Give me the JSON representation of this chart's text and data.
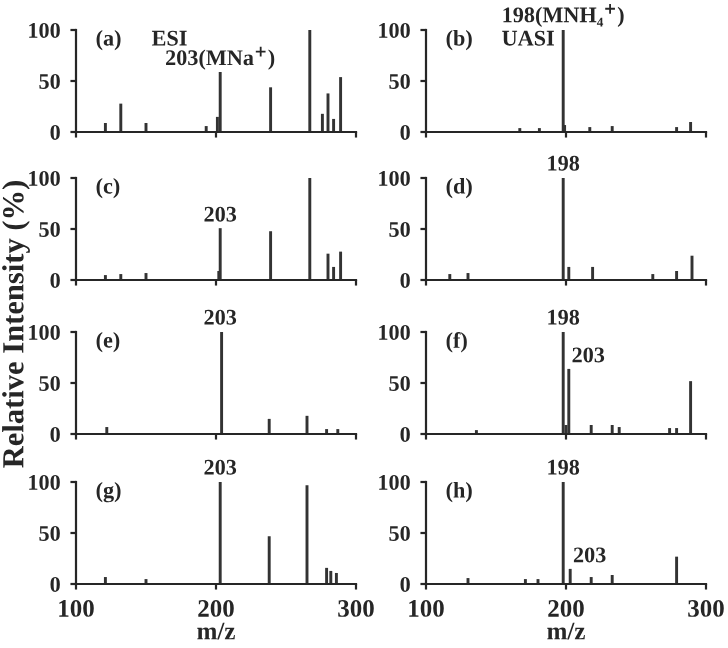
{
  "chart_data": [
    {
      "type": "bar",
      "x": [
        121,
        132,
        150,
        193,
        201,
        203,
        239,
        267,
        276,
        280,
        284,
        289
      ],
      "values": [
        8,
        27,
        8,
        5,
        14,
        58,
        43,
        100,
        17,
        37,
        12,
        53
      ],
      "color": "#333333",
      "xlim": [
        100,
        300
      ],
      "ylim": [
        0,
        100
      ],
      "yticks": [
        0,
        50,
        100
      ],
      "tick_labels": "y",
      "ylabel": "Relative Intensity (%)",
      "annotations": [
        "(a)",
        "ESI",
        {
          "text": "203(MNa$^{+}$)",
          "x": 203,
          "y": 58
        }
      ]
    },
    {
      "type": "bar",
      "x": [
        167,
        181,
        198,
        199,
        217,
        233,
        279,
        289
      ],
      "values": [
        3,
        3,
        100,
        6,
        4,
        5,
        4,
        9
      ],
      "color": "#333333",
      "xlim": [
        100,
        300
      ],
      "ylim": [
        0,
        100
      ],
      "yticks": [
        0,
        50,
        100
      ],
      "tick_labels": "y",
      "annotations": [
        "(b)",
        "UASI",
        {
          "text": "198(MNH₄$^{+}$)",
          "x": 198,
          "y": 100
        }
      ]
    },
    {
      "type": "bar",
      "x": [
        121,
        132,
        150,
        202,
        203,
        239,
        267,
        280,
        284,
        289
      ],
      "values": [
        4,
        5,
        6,
        8,
        50,
        47,
        100,
        25,
        12,
        27
      ],
      "color": "#333333",
      "xlim": [
        100,
        300
      ],
      "ylim": [
        0,
        100
      ],
      "yticks": [
        0,
        50,
        100
      ],
      "tick_labels": "y",
      "annotations": [
        "(c)",
        {
          "text": "203",
          "x": 203,
          "y": 50
        }
      ]
    },
    {
      "type": "bar",
      "x": [
        117,
        130,
        198,
        202,
        219,
        262,
        279,
        290
      ],
      "values": [
        5,
        6,
        100,
        12,
        12,
        5,
        8,
        23
      ],
      "color": "#333333",
      "xlim": [
        100,
        300
      ],
      "ylim": [
        0,
        100
      ],
      "yticks": [
        0,
        50,
        100
      ],
      "tick_labels": "y",
      "annotations": [
        "(d)",
        {
          "text": "198",
          "x": 198,
          "y": 100
        }
      ]
    },
    {
      "type": "bar",
      "x": [
        122,
        204,
        238,
        265,
        279,
        287
      ],
      "values": [
        6,
        100,
        14,
        17,
        4,
        4
      ],
      "color": "#333333",
      "xlim": [
        100,
        300
      ],
      "ylim": [
        0,
        100
      ],
      "yticks": [
        0,
        50,
        100
      ],
      "tick_labels": "y",
      "annotations": [
        "(e)",
        {
          "text": "203",
          "x": 203,
          "y": 100
        }
      ]
    },
    {
      "type": "bar",
      "x": [
        136,
        198,
        200,
        202,
        218,
        233,
        238,
        274,
        279,
        289
      ],
      "values": [
        3,
        100,
        8,
        63,
        8,
        8,
        6,
        5,
        5,
        51
      ],
      "color": "#333333",
      "xlim": [
        100,
        300
      ],
      "ylim": [
        0,
        100
      ],
      "yticks": [
        0,
        50,
        100
      ],
      "tick_labels": "y",
      "annotations": [
        "(f)",
        {
          "text": "198",
          "x": 198,
          "y": 100
        },
        {
          "text": "203",
          "x": 202,
          "y": 63
        }
      ]
    },
    {
      "type": "bar",
      "x": [
        121,
        150,
        203,
        238,
        265,
        279,
        282,
        286
      ],
      "values": [
        6,
        4,
        100,
        46,
        96,
        15,
        12,
        10
      ],
      "color": "#333333",
      "xlim": [
        100,
        300
      ],
      "ylim": [
        0,
        100
      ],
      "xticks": [
        100,
        200,
        300
      ],
      "yticks": [
        0,
        50,
        100
      ],
      "xlabel": "m/z",
      "annotations": [
        "(g)",
        {
          "text": "203",
          "x": 203,
          "y": 100
        }
      ]
    },
    {
      "type": "bar",
      "x": [
        130,
        171,
        180,
        198,
        203,
        218,
        233,
        279
      ],
      "values": [
        5,
        4,
        4,
        100,
        14,
        6,
        8,
        26
      ],
      "color": "#333333",
      "xlim": [
        100,
        300
      ],
      "ylim": [
        0,
        100
      ],
      "xticks": [
        100,
        200,
        300
      ],
      "yticks": [
        0,
        50,
        100
      ],
      "xlabel": "m/z",
      "annotations": [
        "(h)",
        {
          "text": "198",
          "x": 198,
          "y": 100
        },
        {
          "text": "203",
          "x": 203,
          "y": 14
        }
      ]
    }
  ]
}
